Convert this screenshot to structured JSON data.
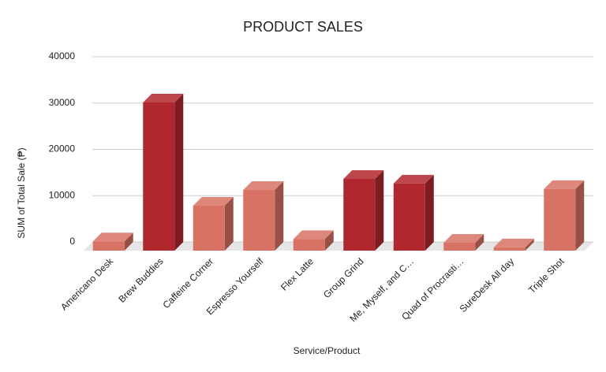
{
  "chart_data": {
    "type": "bar3d",
    "title": "PRODUCT SALES",
    "x_label": "Service/Product",
    "y_label": "SUM of Total Sale (₱)",
    "categories": [
      "Americano Desk",
      "Brew Buddies",
      "Caffeine Corner",
      "Espresso Yourself",
      "Flex Latte",
      "Group Grind",
      "Me, Myself, and C…",
      "Quad of Procrasti…",
      "SureDesk All day",
      "Triple Shot"
    ],
    "values": [
      2000,
      32000,
      9700,
      13100,
      2500,
      15500,
      14500,
      1700,
      700,
      13300
    ],
    "colors": [
      "#d87264",
      "#b0282e",
      "#d87264",
      "#d87264",
      "#d87264",
      "#b0282e",
      "#b0282e",
      "#d87264",
      "#d87264",
      "#d87264"
    ],
    "ylim": [
      0,
      40000
    ],
    "yticks": [
      0,
      10000,
      20000,
      30000,
      40000
    ],
    "grid": true
  }
}
